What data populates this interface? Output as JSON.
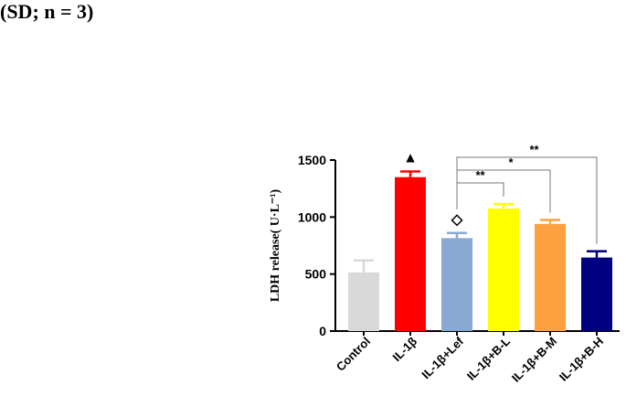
{
  "header": {
    "caption_fragment": "(SD; n = 3)"
  },
  "chart_data": {
    "type": "bar",
    "categories": [
      "Control",
      "IL-1β",
      "IL-1β+Lef",
      "IL-1β+B-L",
      "IL-1β+B-M",
      "IL-1β+B-H"
    ],
    "values": [
      515,
      1350,
      815,
      1075,
      940,
      645
    ],
    "errors": [
      105,
      50,
      45,
      40,
      35,
      55
    ],
    "colors": [
      "#d9d9d9",
      "#ff0000",
      "#88aad2",
      "#ffff00",
      "#ffa040",
      "#000080"
    ],
    "ylabel": "LDH release( U·L⁻¹)",
    "ylim": [
      0,
      1500
    ],
    "yticks": [
      0,
      500,
      1000,
      1500
    ],
    "markers": [
      {
        "category": "IL-1β",
        "symbol": "▲"
      },
      {
        "category": "IL-1β+Lef",
        "symbol": "◇"
      }
    ],
    "comparisons": [
      {
        "from": "IL-1β+Lef",
        "to": "IL-1β+B-L",
        "label": "**"
      },
      {
        "from": "IL-1β+Lef",
        "to": "IL-1β+B-M",
        "label": "*"
      },
      {
        "from": "IL-1β+Lef",
        "to": "IL-1β+B-H",
        "label": "**"
      }
    ]
  }
}
